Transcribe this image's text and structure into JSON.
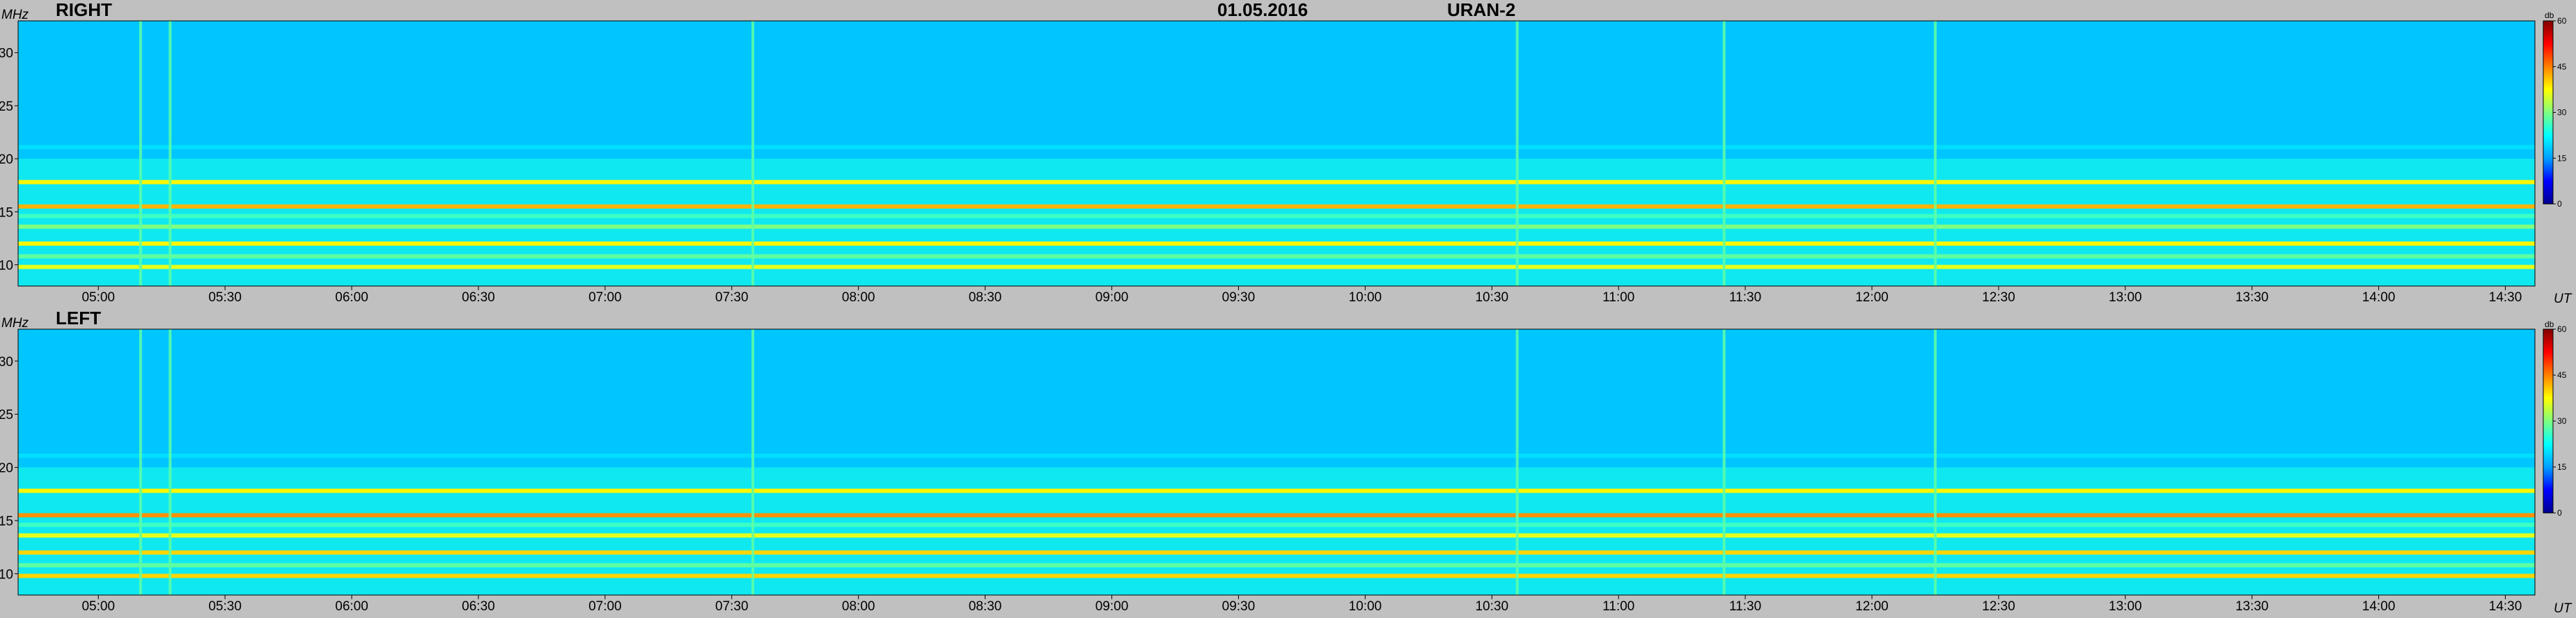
{
  "header": {
    "date": "01.05.2016",
    "instrument": "URAN-2"
  },
  "colors": {
    "background": "#c0c0c0",
    "colormap": [
      "#00008f",
      "#0000ff",
      "#00a0ff",
      "#00ffff",
      "#80ff80",
      "#ffff00",
      "#ff8000",
      "#ff0000",
      "#800000"
    ]
  },
  "chart_data": [
    {
      "type": "heatmap",
      "panel": "RIGHT",
      "title": "RIGHT",
      "ylabel": "MHz",
      "xlabel": "UT",
      "ylim": [
        8,
        33
      ],
      "yticks": [
        10,
        15,
        20,
        25,
        30
      ],
      "xlim": [
        "04:41",
        "14:37"
      ],
      "xticks": [
        "05:00",
        "05:30",
        "06:00",
        "06:30",
        "07:00",
        "07:30",
        "08:00",
        "08:30",
        "09:00",
        "09:30",
        "10:00",
        "10:30",
        "11:00",
        "11:30",
        "12:00",
        "12:30",
        "13:00",
        "13:30",
        "14:00",
        "14:30"
      ],
      "colorbar": {
        "label": "db",
        "range": [
          0,
          60
        ],
        "ticks": [
          0,
          15,
          30,
          45,
          60
        ]
      },
      "background_level_db": 10,
      "interference_bands_mhz": [
        {
          "freq": 17.8,
          "level_db": 38
        },
        {
          "freq": 15.5,
          "level_db": 42
        },
        {
          "freq": 14.6,
          "level_db": 26
        },
        {
          "freq": 13.6,
          "level_db": 30
        },
        {
          "freq": 12.0,
          "level_db": 38
        },
        {
          "freq": 10.8,
          "level_db": 28
        },
        {
          "freq": 9.8,
          "level_db": 36
        },
        {
          "freq": 21.1,
          "level_db": 20
        }
      ],
      "vertical_bursts_ut": [
        "05:10",
        "05:17",
        "07:35",
        "10:36",
        "11:25",
        "12:15"
      ]
    },
    {
      "type": "heatmap",
      "panel": "LEFT",
      "title": "LEFT",
      "ylabel": "MHz",
      "xlabel": "UT",
      "ylim": [
        8,
        33
      ],
      "yticks": [
        10,
        15,
        20,
        25,
        30
      ],
      "xlim": [
        "04:41",
        "14:37"
      ],
      "xticks": [
        "05:00",
        "05:30",
        "06:00",
        "06:30",
        "07:00",
        "07:30",
        "08:00",
        "08:30",
        "09:00",
        "09:30",
        "10:00",
        "10:30",
        "11:00",
        "11:30",
        "12:00",
        "12:30",
        "13:00",
        "13:30",
        "14:00",
        "14:30"
      ],
      "colorbar": {
        "label": "db",
        "range": [
          0,
          60
        ],
        "ticks": [
          0,
          15,
          30,
          45,
          60
        ]
      },
      "background_level_db": 10,
      "interference_bands_mhz": [
        {
          "freq": 17.8,
          "level_db": 38
        },
        {
          "freq": 15.5,
          "level_db": 44
        },
        {
          "freq": 14.6,
          "level_db": 26
        },
        {
          "freq": 13.6,
          "level_db": 36
        },
        {
          "freq": 12.0,
          "level_db": 40
        },
        {
          "freq": 10.8,
          "level_db": 28
        },
        {
          "freq": 9.8,
          "level_db": 40
        },
        {
          "freq": 21.1,
          "level_db": 20
        }
      ],
      "vertical_bursts_ut": [
        "05:10",
        "05:17",
        "07:35",
        "10:36",
        "11:25",
        "12:15"
      ]
    }
  ]
}
